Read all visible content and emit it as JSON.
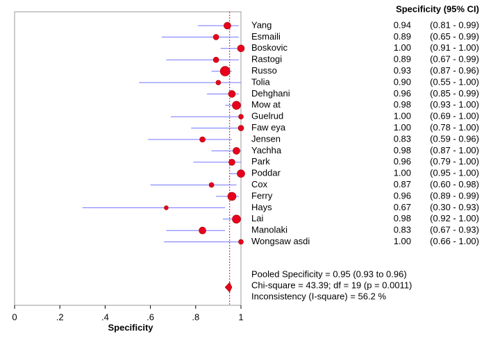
{
  "chart_data": {
    "type": "forest",
    "column_header": "Specificity (95% CI)",
    "xlabel": "Specificity",
    "xlim": [
      0,
      1
    ],
    "xticks": [
      0,
      {
        "value": 0.2,
        "label": ".2"
      },
      {
        "value": 0.4,
        "label": ".4"
      },
      {
        "value": 0.6,
        "label": ".6"
      },
      {
        "value": 0.8,
        "label": ".8"
      },
      1
    ],
    "marker_color": "#e8001c",
    "ci_color": "#7070ff",
    "categories": [
      "Yang",
      "Esmaili",
      "Boskovic",
      "Rastogi",
      "Russo",
      "Tolia",
      "Dehghani",
      "Mow at",
      "Guelrud",
      "Faw eya",
      "Jensen",
      "Yachha",
      "Park",
      "Poddar",
      "Cox",
      "Ferry",
      "Hays",
      "Lai",
      "Manolaki",
      "Wongsaw asdi"
    ],
    "values": [
      0.94,
      0.89,
      1.0,
      0.89,
      0.93,
      0.9,
      0.96,
      0.98,
      1.0,
      1.0,
      0.83,
      0.98,
      0.96,
      1.0,
      0.87,
      0.96,
      0.67,
      0.98,
      0.83,
      1.0
    ],
    "value_labels": [
      "0.94",
      "0.89",
      "1.00",
      "0.89",
      "0.93",
      "0.90",
      "0.96",
      "0.98",
      "1.00",
      "1.00",
      "0.83",
      "0.98",
      "0.96",
      "1.00",
      "0.87",
      "0.96",
      "0.67",
      "0.98",
      "0.83",
      "1.00"
    ],
    "lower": [
      0.81,
      0.65,
      0.91,
      0.67,
      0.87,
      0.55,
      0.85,
      0.93,
      0.69,
      0.78,
      0.59,
      0.87,
      0.79,
      0.95,
      0.6,
      0.89,
      0.3,
      0.92,
      0.67,
      0.66
    ],
    "upper": [
      0.99,
      0.99,
      1.0,
      0.99,
      0.96,
      1.0,
      0.99,
      1.0,
      1.0,
      1.0,
      0.96,
      1.0,
      1.0,
      1.0,
      0.98,
      0.99,
      0.93,
      1.0,
      0.93,
      1.0
    ],
    "ci_labels": [
      "(0.81 - 0.99)",
      "(0.65 - 0.99)",
      "(0.91 - 1.00)",
      "(0.67 - 0.99)",
      "(0.87 - 0.96)",
      "(0.55 - 1.00)",
      "(0.85 - 0.99)",
      "(0.93 - 1.00)",
      "(0.69 - 1.00)",
      "(0.78 - 1.00)",
      "(0.59 - 0.96)",
      "(0.87 - 1.00)",
      "(0.79 - 1.00)",
      "(0.95 - 1.00)",
      "(0.60 - 0.98)",
      "(0.89 - 0.99)",
      "(0.30 - 0.93)",
      "(0.92 - 1.00)",
      "(0.67 - 0.93)",
      "(0.66 - 1.00)"
    ],
    "marker_sizes": [
      5,
      4,
      5,
      4,
      7,
      3.5,
      5,
      6,
      3.5,
      4,
      4,
      5,
      4.5,
      5.5,
      3.5,
      6,
      3,
      6,
      5,
      3.5
    ],
    "pooled": {
      "value": 0.95,
      "lower": 0.93,
      "upper": 0.96
    },
    "annotations": [
      "Pooled Specificity = 0.95 (0.93 to 0.96)",
      "Chi-square = 43.39; df =  19 (p = 0.0011)",
      "Inconsistency (I-square) = 56.2 %"
    ]
  }
}
